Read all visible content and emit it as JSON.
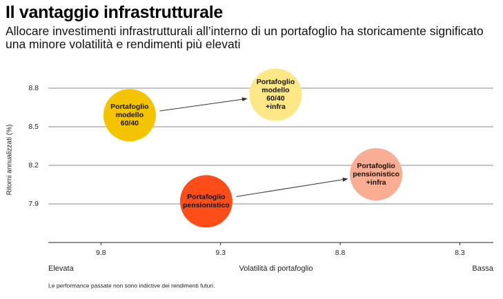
{
  "chart_data": {
    "type": "scatter",
    "title": "Il vantaggio infrastrutturale",
    "subtitle": "Allocare investimenti infrastrutturali all’interno di un portafoglio ha storicamente significato una minore volatilità e rendimenti più elevati",
    "x_label": "Volatilità di portafoglio",
    "y_label": "Ritorni annualizzati (%)",
    "x_left_label": "Elevata",
    "x_right_label": "Bassa",
    "footnote": "Le performance passate non sono indictive dei rendimenti futuri.",
    "xlim": [
      10.02,
      8.16
    ],
    "xticks": [
      9.8,
      9.3,
      8.8,
      8.3
    ],
    "ylim": [
      7.6,
      8.95
    ],
    "yticks": [
      8.8,
      8.5,
      8.2,
      7.9
    ],
    "grid": true,
    "series": [
      {
        "name": "Portafoglio modello 60/40",
        "color": "#f5c400",
        "x": [
          9.68
        ],
        "values": [
          8.59
        ]
      },
      {
        "name": "Portafoglio modello 60/40 +infra",
        "color": "#fde787",
        "x": [
          9.07
        ],
        "values": [
          8.75
        ]
      },
      {
        "name": "Portafoglio pensionistico",
        "color": "#ff4d1a",
        "x": [
          9.36
        ],
        "values": [
          7.92
        ]
      },
      {
        "name": "Portafoglio pensionistico +infra",
        "color": "#f9ad92",
        "x": [
          8.65
        ],
        "values": [
          8.13
        ]
      }
    ]
  }
}
